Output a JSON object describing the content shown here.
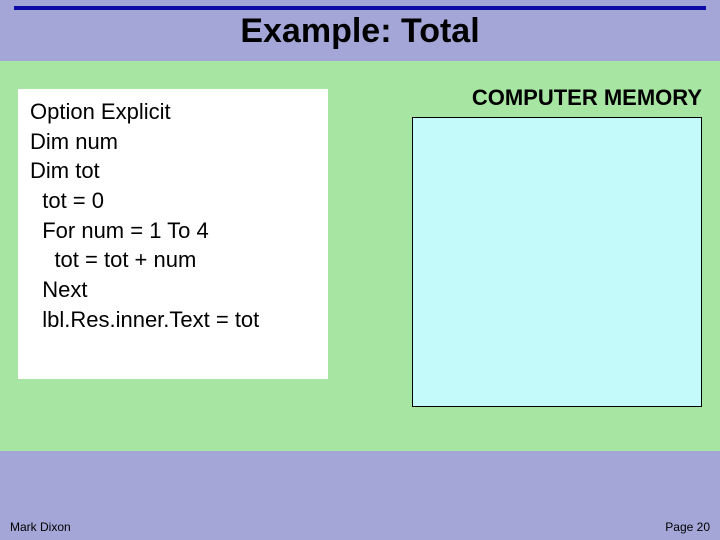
{
  "colors": {
    "page_bg": "#a3a6d6",
    "rule": "#0a0aa5",
    "title": "#000000",
    "title_fontsize": 34,
    "content_bg": "#a7e6a2",
    "code_panel_bg": "#ffffff",
    "code_text": "#000000",
    "code_fontsize": 22,
    "memory_label_color": "#000000",
    "memory_label_fontsize": 22,
    "memory_box_bg": "#c4fafa",
    "memory_box_border": "#000000",
    "footer_text": "#000000",
    "footer_fontsize": 12
  },
  "title": "Example: Total",
  "code": {
    "l1": "Option Explicit",
    "l2": "Dim num",
    "l3": "Dim tot",
    "l4": "  tot = 0",
    "l5": "  For num = 1 To 4",
    "l6": "    tot = tot + num",
    "l7": "  Next",
    "l8": "  lbl.Res.inner.Text = tot"
  },
  "memory_label": "COMPUTER MEMORY",
  "footer": {
    "author": "Mark Dixon",
    "page": "Page 20"
  }
}
